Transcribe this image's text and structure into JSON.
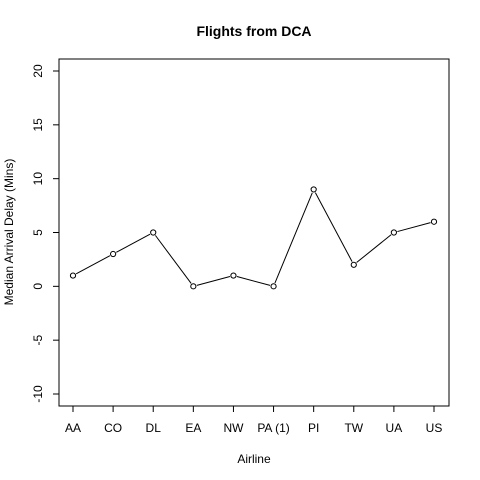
{
  "chart_data": {
    "type": "line",
    "title": "Flights from DCA",
    "xlabel": "Airline",
    "ylabel": "Median Arrival Delay (Mins)",
    "categories": [
      "AA",
      "CO",
      "DL",
      "EA",
      "NW",
      "PA (1)",
      "PI",
      "TW",
      "UA",
      "US"
    ],
    "series": [
      {
        "values": [
          1,
          3,
          5,
          0,
          1,
          0,
          9,
          2,
          5,
          6
        ]
      }
    ],
    "ylim": [
      -10,
      20
    ],
    "yticks": [
      -10,
      -5,
      0,
      5,
      10,
      15,
      20
    ],
    "grid": false,
    "markers": "open-circle",
    "colors": {
      "line": "#000000",
      "marker": "#000000",
      "background": "#ffffff"
    }
  }
}
